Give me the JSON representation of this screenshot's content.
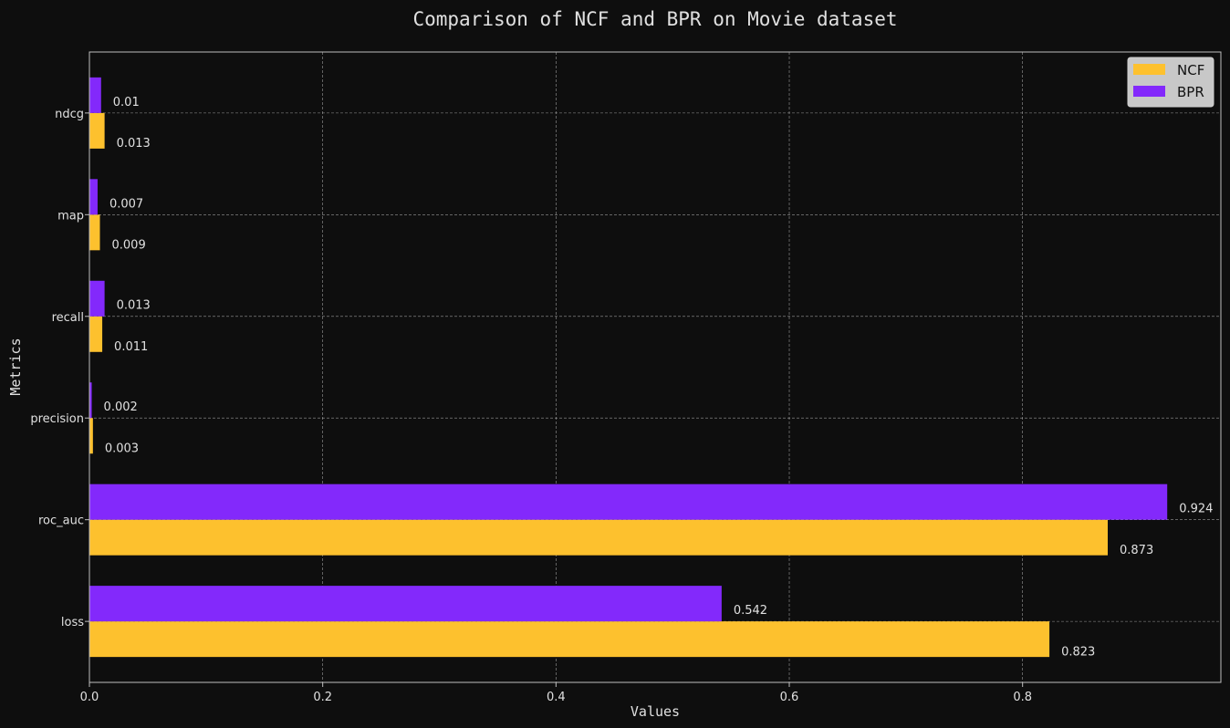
{
  "colors": {
    "background": "#0e0e0e",
    "axes_edge": "#bfbfbf",
    "grid": "#bdbdbd",
    "text": "#e0e0e0",
    "ncf": "#fdc12e",
    "bpr": "#8329fb",
    "legend_bg": "#c8c8c8",
    "legend_text": "#111111"
  },
  "chart_data": {
    "type": "bar",
    "orientation": "horizontal",
    "title": "Comparison of NCF and BPR on Movie dataset",
    "xlabel": "Values",
    "ylabel": "Metrics",
    "categories": [
      "loss",
      "roc_auc",
      "precision",
      "recall",
      "map",
      "ndcg"
    ],
    "series": [
      {
        "name": "NCF",
        "color": "#fdc12e",
        "values": [
          0.823,
          0.873,
          0.003,
          0.011,
          0.009,
          0.013
        ],
        "labels": [
          "0.823",
          "0.873",
          "0.003",
          "0.011",
          "0.009",
          "0.013"
        ]
      },
      {
        "name": "BPR",
        "color": "#8329fb",
        "values": [
          0.542,
          0.924,
          0.002,
          0.013,
          0.007,
          0.01
        ],
        "labels": [
          "0.542",
          "0.924",
          "0.002",
          "0.013",
          "0.007",
          "0.01"
        ]
      }
    ],
    "xlim": [
      0,
      0.97
    ],
    "xticks": [
      0.0,
      0.2,
      0.4,
      0.6,
      0.8
    ],
    "xtick_labels": [
      "0.0",
      "0.2",
      "0.4",
      "0.6",
      "0.8"
    ],
    "grid": true,
    "grid_style": "dashed",
    "legend": "top-right"
  }
}
